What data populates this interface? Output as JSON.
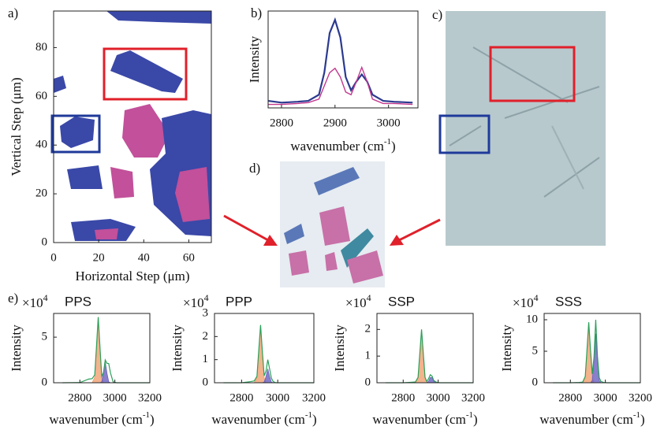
{
  "panel_labels": [
    "a)",
    "b)",
    "c)",
    "d)",
    "e)"
  ],
  "chart_data": [
    {
      "type": "map",
      "xlabel": "Horizontal Step (μm)",
      "ylabel": "Vertical Step (μm)",
      "xlim": [
        0,
        70
      ],
      "ylim": [
        0,
        95
      ],
      "xticks": [
        0,
        20,
        40,
        60
      ],
      "yticks": [
        0,
        20,
        40,
        60,
        80
      ]
    },
    {
      "type": "line",
      "ylabel": "Intensity",
      "xlabel": [
        "wavenumber (cm",
        "-1",
        ")"
      ],
      "xlim": [
        2775,
        3055
      ],
      "ylim": [
        0,
        1.1
      ],
      "xticks": [
        2800,
        2900,
        3000
      ],
      "x": [
        2775,
        2800,
        2830,
        2850,
        2870,
        2880,
        2890,
        2900,
        2910,
        2920,
        2930,
        2940,
        2950,
        2960,
        2970,
        2990,
        3010,
        3045
      ],
      "series": [
        {
          "color": "#2b3a8f",
          "values": [
            0.08,
            0.06,
            0.07,
            0.08,
            0.15,
            0.4,
            0.85,
            1.0,
            0.8,
            0.35,
            0.2,
            0.3,
            0.38,
            0.3,
            0.15,
            0.08,
            0.07,
            0.06
          ]
        },
        {
          "color": "#c2388e",
          "values": [
            0.04,
            0.04,
            0.05,
            0.06,
            0.1,
            0.25,
            0.4,
            0.45,
            0.35,
            0.18,
            0.15,
            0.3,
            0.46,
            0.3,
            0.1,
            0.05,
            0.05,
            0.04
          ]
        }
      ]
    },
    {
      "type": "area",
      "title": "PPS",
      "multiplier": "×10",
      "multiplier_exp": "4",
      "ylabel": "Intensity",
      "xlabel": [
        "wavenumber (cm",
        "-1",
        ")"
      ],
      "xlim": [
        2650,
        3200
      ],
      "ylim": [
        0,
        7.6
      ],
      "xticks": [
        2800,
        3000,
        3200
      ],
      "yticks": [
        0,
        5
      ],
      "x": [
        2700,
        2800,
        2850,
        2870,
        2885,
        2895,
        2905,
        2915,
        2925,
        2935,
        2945,
        2955,
        2965,
        2975,
        2990,
        3010,
        3050,
        3200
      ],
      "series": [
        {
          "color": "#f0a070",
          "style": "area",
          "values": [
            0,
            0,
            0,
            0,
            0.61,
            3.89,
            7.2,
            3.89,
            0.61,
            0.03,
            0,
            0,
            0,
            0,
            0,
            0,
            0,
            0
          ]
        },
        {
          "color": "#6a5fc0",
          "style": "area",
          "values": [
            0,
            0,
            0,
            0,
            0,
            0,
            0,
            0,
            0.1,
            1.05,
            2.3,
            1.05,
            0.1,
            0,
            0,
            0,
            0,
            0
          ]
        },
        {
          "color": "#2ca05a",
          "style": "line",
          "values": [
            0,
            0.02,
            0.4,
            0.45,
            0.86,
            3.95,
            7.2,
            3.9,
            0.7,
            1.1,
            2.5,
            2.13,
            2.1,
            1.08,
            0.1,
            0,
            0,
            0
          ]
        }
      ]
    },
    {
      "type": "area",
      "title": "PPP",
      "multiplier": "×10",
      "multiplier_exp": "4",
      "ylabel": "Intensity",
      "xlabel": [
        "wavenumber (cm",
        "-1",
        ")"
      ],
      "xlim": [
        2650,
        3200
      ],
      "ylim": [
        0,
        3
      ],
      "xticks": [
        2800,
        3000,
        3200
      ],
      "yticks": [
        0,
        1,
        2,
        3
      ],
      "x": [
        2700,
        2800,
        2850,
        2870,
        2885,
        2895,
        2905,
        2915,
        2925,
        2935,
        2945,
        2955,
        2965,
        2975,
        2990,
        3010,
        3050,
        3200
      ],
      "series": [
        {
          "color": "#f0a070",
          "style": "area",
          "values": [
            0,
            0,
            0,
            0,
            0.21,
            1.32,
            2.45,
            1.32,
            0.21,
            0.01,
            0,
            0,
            0,
            0,
            0,
            0,
            0,
            0
          ]
        },
        {
          "color": "#6a5fc0",
          "style": "area",
          "values": [
            0,
            0,
            0,
            0,
            0,
            0,
            0,
            0,
            0.03,
            0.27,
            0.6,
            0.27,
            0.03,
            0,
            0,
            0,
            0,
            0
          ]
        },
        {
          "color": "#2ca05a",
          "style": "line",
          "values": [
            0,
            0,
            0.05,
            0.08,
            0.28,
            1.4,
            2.5,
            1.35,
            0.3,
            0.5,
            1.0,
            0.6,
            0.2,
            0.05,
            0,
            0,
            0,
            0
          ]
        }
      ]
    },
    {
      "type": "area",
      "title": "SSP",
      "multiplier": "×10",
      "multiplier_exp": "4",
      "ylabel": "Intensity",
      "xlabel": [
        "wavenumber (cm",
        "-1",
        ")"
      ],
      "xlim": [
        2650,
        3200
      ],
      "ylim": [
        0,
        2.6
      ],
      "xticks": [
        2800,
        3000,
        3200
      ],
      "yticks": [
        0,
        1,
        2
      ],
      "x": [
        2700,
        2800,
        2850,
        2870,
        2885,
        2895,
        2905,
        2915,
        2925,
        2935,
        2945,
        2955,
        2965,
        2975,
        2990,
        3010,
        3050,
        3200
      ],
      "series": [
        {
          "color": "#f0a070",
          "style": "area",
          "values": [
            0,
            0,
            0,
            0,
            0.17,
            1.08,
            2.0,
            1.08,
            0.17,
            0.01,
            0,
            0,
            0,
            0,
            0,
            0,
            0,
            0
          ]
        },
        {
          "color": "#6a5fc0",
          "style": "area",
          "values": [
            0,
            0,
            0,
            0,
            0,
            0,
            0,
            0,
            0,
            0,
            0.05,
            0.2,
            0.2,
            0.05,
            0,
            0,
            0,
            0
          ]
        },
        {
          "color": "#2ca05a",
          "style": "line",
          "values": [
            0,
            0,
            0.02,
            0.03,
            0.2,
            1.1,
            2.0,
            1.1,
            0.2,
            0.05,
            0.15,
            0.3,
            0.25,
            0.08,
            0.02,
            0,
            0,
            0
          ]
        }
      ]
    },
    {
      "type": "area",
      "title": "SSS",
      "multiplier": "×10",
      "multiplier_exp": "4",
      "ylabel": "Intensity",
      "xlabel": [
        "wavenumber (cm",
        "-1",
        ")"
      ],
      "xlim": [
        2650,
        3200
      ],
      "ylim": [
        0,
        11
      ],
      "xticks": [
        2800,
        3000,
        3200
      ],
      "yticks": [
        0,
        5,
        10
      ],
      "x": [
        2700,
        2800,
        2850,
        2870,
        2885,
        2895,
        2905,
        2915,
        2925,
        2935,
        2945,
        2955,
        2965,
        2975,
        2990,
        3010,
        3050,
        3200
      ],
      "series": [
        {
          "color": "#f0a070",
          "style": "area",
          "values": [
            0,
            0,
            0,
            0,
            0.79,
            5.02,
            9.3,
            5.02,
            0.79,
            0.04,
            0,
            0,
            0,
            0,
            0,
            0,
            0,
            0
          ]
        },
        {
          "color": "#6a5fc0",
          "style": "area",
          "values": [
            0,
            0,
            0,
            0,
            0,
            0,
            0,
            0,
            0.35,
            3.59,
            7.8,
            3.59,
            0.35,
            0,
            0,
            0,
            0,
            0
          ]
        },
        {
          "color": "#2ca05a",
          "style": "line",
          "values": [
            0,
            0,
            0.05,
            0.1,
            1.0,
            5.2,
            9.6,
            5.3,
            1.4,
            4.0,
            10.0,
            4.2,
            0.8,
            0.2,
            0.05,
            0,
            0,
            0
          ]
        }
      ]
    }
  ]
}
